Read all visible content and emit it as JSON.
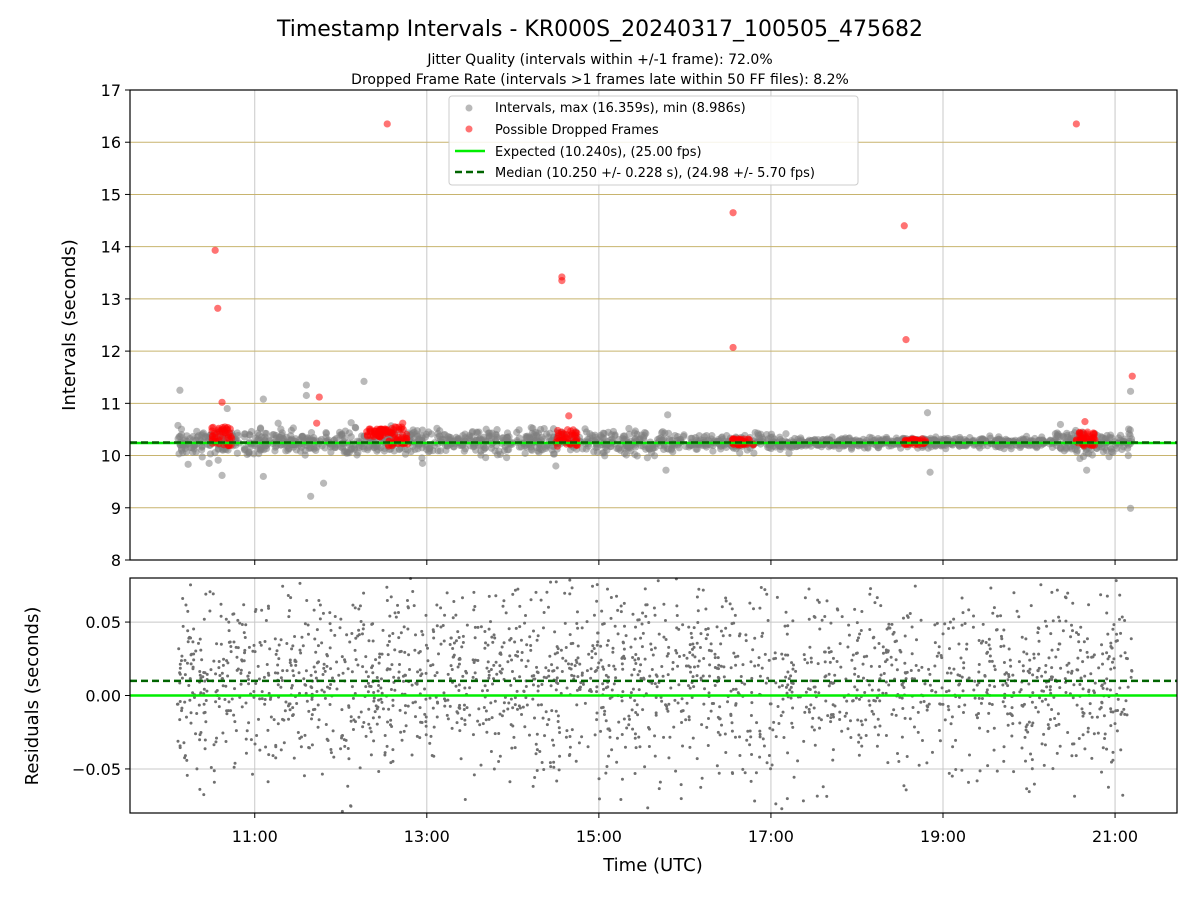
{
  "figure": {
    "title": "Timestamp Intervals - KR000S_20240317_100505_475682",
    "subtitle_1": "Jitter Quality (intervals within +/-1 frame): 72.0%",
    "subtitle_2": "Dropped Frame Rate (intervals >1 frames late within 50 FF files): 8.2%"
  },
  "colors": {
    "intervals": "#808080",
    "dropped": "#ff0000",
    "expected": "#00ee00",
    "median": "#006400",
    "hgrid": "#c8b46e",
    "vgrid": "#c8c8c8"
  },
  "chart_data": [
    {
      "type": "scatter",
      "panel": "intervals",
      "ylabel": "Intervals (seconds)",
      "ylim": [
        8,
        17
      ],
      "yticks": [
        "8",
        "9",
        "10",
        "11",
        "12",
        "13",
        "14",
        "15",
        "16",
        "17"
      ],
      "xlim": [
        9.55,
        21.72
      ],
      "xticks": [
        11,
        13,
        15,
        17,
        19,
        21
      ],
      "grid": true,
      "legend_position": "upper-center",
      "legend": [
        "Intervals, max (16.359s), min (8.986s)",
        "Possible Dropped Frames",
        "Expected (10.240s), (25.00 fps)",
        "Median (10.250 +/- 0.228 s), (24.98 +/- 5.70 fps)"
      ],
      "expected": 10.24,
      "median": 10.25,
      "series": [
        {
          "name": "Intervals, max (16.359s), min (8.986s)",
          "color": "#808080",
          "x_range_hours": [
            10.1,
            21.2
          ],
          "band_center": 10.25,
          "notable_points": [
            [
              10.13,
              11.25
            ],
            [
              11.1,
              11.08
            ],
            [
              11.6,
              11.35
            ],
            [
              11.6,
              11.15
            ],
            [
              12.27,
              11.42
            ],
            [
              11.65,
              9.22
            ],
            [
              11.8,
              9.47
            ],
            [
              11.1,
              9.6
            ],
            [
              10.62,
              9.62
            ],
            [
              15.8,
              10.78
            ],
            [
              15.78,
              9.72
            ],
            [
              18.82,
              10.82
            ],
            [
              18.85,
              9.68
            ],
            [
              20.67,
              9.72
            ],
            [
              21.18,
              11.23
            ],
            [
              21.18,
              8.99
            ],
            [
              14.5,
              9.8
            ],
            [
              12.95,
              9.85
            ],
            [
              10.68,
              10.9
            ]
          ]
        },
        {
          "name": "Possible Dropped Frames",
          "color": "#ff0000",
          "points": [
            [
              10.54,
              13.93
            ],
            [
              10.57,
              12.82
            ],
            [
              10.62,
              11.02
            ],
            [
              12.54,
              16.35
            ],
            [
              11.75,
              11.12
            ],
            [
              11.72,
              10.62
            ],
            [
              14.57,
              13.42
            ],
            [
              14.57,
              13.35
            ],
            [
              14.65,
              10.76
            ],
            [
              16.56,
              14.65
            ],
            [
              16.56,
              12.07
            ],
            [
              18.55,
              14.4
            ],
            [
              18.57,
              12.22
            ],
            [
              20.55,
              16.35
            ],
            [
              20.65,
              10.65
            ],
            [
              21.2,
              11.52
            ],
            [
              12.72,
              10.62
            ],
            [
              10.58,
              10.52
            ]
          ],
          "clusters": [
            {
              "x_range_hours": [
                10.5,
                10.75
              ],
              "y_range": [
                10.18,
                10.55
              ]
            },
            {
              "x_range_hours": [
                12.3,
                12.55
              ],
              "y_range": [
                10.35,
                10.52
              ]
            },
            {
              "x_range_hours": [
                12.55,
                12.78
              ],
              "y_range": [
                10.18,
                10.55
              ]
            },
            {
              "x_range_hours": [
                14.5,
                14.75
              ],
              "y_range": [
                10.18,
                10.5
              ]
            },
            {
              "x_range_hours": [
                16.55,
                16.8
              ],
              "y_range": [
                10.2,
                10.32
              ]
            },
            {
              "x_range_hours": [
                18.55,
                18.8
              ],
              "y_range": [
                10.2,
                10.32
              ]
            },
            {
              "x_range_hours": [
                20.55,
                20.78
              ],
              "y_range": [
                10.18,
                10.45
              ]
            }
          ]
        }
      ]
    },
    {
      "type": "scatter",
      "panel": "residuals",
      "xlabel": "Time (UTC)",
      "ylabel": "Residuals (seconds)",
      "ylim": [
        -0.08,
        0.08
      ],
      "yticks": [
        -0.05,
        0.0,
        0.05
      ],
      "ytick_labels": [
        "−0.05",
        "0.00",
        "0.05"
      ],
      "xlim": [
        9.55,
        21.72
      ],
      "xticks": [
        11,
        13,
        15,
        17,
        19,
        21
      ],
      "xtick_labels": [
        "11:00",
        "13:00",
        "15:00",
        "17:00",
        "19:00",
        "21:00"
      ],
      "grid": true,
      "expected_line": 0.0,
      "median_line": 0.01,
      "series": [
        {
          "color": "#707070",
          "x_range_hours": [
            10.1,
            21.2
          ],
          "y_spread": [
            -0.08,
            0.08
          ]
        }
      ]
    }
  ]
}
